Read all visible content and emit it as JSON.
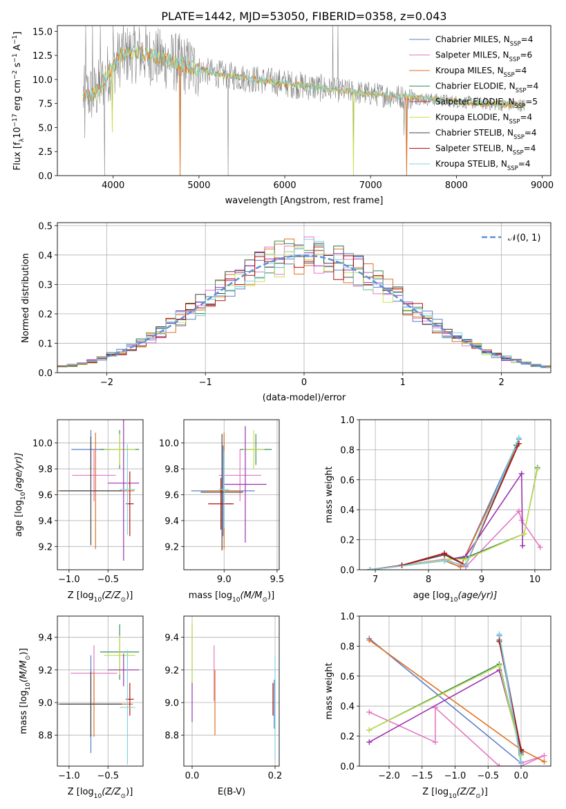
{
  "figure": {
    "title": "PLATE=1442, MJD=53050, FIBERID=0358, z=0.043",
    "legend_entries": [
      {
        "text": "Chabrier MILES, N",
        "sub": "SSP",
        "post": "=4",
        "color": "#5b7fc7"
      },
      {
        "text": "Salpeter MILES, N",
        "sub": "SSP",
        "post": "=6",
        "color": "#e377c2"
      },
      {
        "text": "Kroupa MILES, N",
        "sub": "SSP",
        "post": "=4",
        "color": "#e07020"
      },
      {
        "text": "Chabrier ELODIE, N",
        "sub": "SSP",
        "post": "=4",
        "color": "#3a8a60"
      },
      {
        "text": "Salpeter ELODIE, N",
        "sub": "SSP",
        "post": "=5",
        "color": "#9b30b0"
      },
      {
        "text": "Kroupa ELODIE, N",
        "sub": "SSP",
        "post": "=4",
        "color": "#c8e050"
      },
      {
        "text": "Chabrier STELIB, N",
        "sub": "SSP",
        "post": "=4",
        "color": "#444444"
      },
      {
        "text": "Salpeter STELIB, N",
        "sub": "SSP",
        "post": "=4",
        "color": "#b01010"
      },
      {
        "text": "Kroupa STELIB, N",
        "sub": "SSP",
        "post": "=4",
        "color": "#7fd3e0"
      }
    ],
    "hist_legend": "𝒩(0, 1)",
    "colors": {
      "data": "#808080",
      "model": "#7fd3e0",
      "normal": "#5b8fd9",
      "grid": "#b0b0b0"
    }
  },
  "chart_data": [
    {
      "type": "line",
      "name": "spectrum",
      "xlabel": "wavelength [Angstrom, rest frame]",
      "ylabel_parts": [
        "Flux [f",
        "λ",
        "10",
        "−17",
        " erg cm",
        "−2",
        " s",
        "−1",
        " A",
        "−1",
        "]"
      ],
      "xlim": [
        3350,
        9100
      ],
      "ylim": [
        0,
        15.6
      ],
      "xticks": [
        4000,
        5000,
        6000,
        7000,
        8000,
        9000
      ],
      "yticks": [
        0.0,
        2.5,
        5.0,
        7.5,
        10.0,
        12.5,
        15.0
      ],
      "ytick_labels": [
        "0.0",
        "2.5",
        "5.0",
        "7.5",
        "10.0",
        "12.5",
        "15.0"
      ],
      "continuum": [
        [
          3650,
          8.3
        ],
        [
          3800,
          8.6
        ],
        [
          3950,
          10.8
        ],
        [
          4100,
          12.5
        ],
        [
          4300,
          12.8
        ],
        [
          4500,
          12.3
        ],
        [
          4800,
          11.6
        ],
        [
          5000,
          11.0
        ],
        [
          5200,
          10.6
        ],
        [
          5500,
          10.2
        ],
        [
          6000,
          9.6
        ],
        [
          6500,
          9.0
        ],
        [
          7000,
          8.5
        ],
        [
          7500,
          8.1
        ],
        [
          8000,
          7.7
        ],
        [
          8500,
          7.4
        ],
        [
          8800,
          7.3
        ]
      ],
      "dips": [
        [
          3900,
          0.0
        ],
        [
          3990,
          4.5
        ],
        [
          4780,
          0.0
        ],
        [
          5340,
          0.0
        ],
        [
          6800,
          0.0
        ],
        [
          7390,
          4.2
        ],
        [
          7420,
          0.5
        ],
        [
          3670,
          3.9
        ]
      ],
      "spikes": [
        [
          6560,
          15.6
        ],
        [
          6620,
          15.6
        ],
        [
          3680,
          15.6
        ],
        [
          3760,
          15.6
        ],
        [
          3850,
          15.6
        ],
        [
          4000,
          15.6
        ],
        [
          4100,
          14.8
        ]
      ]
    },
    {
      "type": "area",
      "name": "residual-histogram",
      "xlabel": "(data-model)/error",
      "ylabel": "Normed distribution",
      "xlim": [
        -2.5,
        2.5
      ],
      "ylim": [
        0,
        0.51
      ],
      "xticks": [
        -2,
        -1,
        0,
        1,
        2
      ],
      "xtick_labels": [
        "−2",
        "−1",
        "0",
        "1",
        "2"
      ],
      "yticks": [
        0.0,
        0.1,
        0.2,
        0.3,
        0.4,
        0.5
      ],
      "ytick_labels": [
        "0.0",
        "0.1",
        "0.2",
        "0.3",
        "0.4",
        "0.5"
      ],
      "bin_width": 0.1,
      "bins_start": -2.5
    },
    {
      "type": "scatter",
      "name": "age-vs-Z",
      "xlabel_parts": [
        "Z [log",
        "10",
        "(Z/Z",
        "⊙",
        ")]"
      ],
      "ylabel_parts": [
        "age  [log",
        "10",
        "(age/yr)]"
      ],
      "xlim": [
        -1.15,
        -0.05
      ],
      "ylim": [
        9.02,
        10.18
      ],
      "xticks": [
        -1.0,
        -0.5
      ],
      "xtick_labels": [
        "−1.0",
        "−0.5"
      ],
      "yticks": [
        9.2,
        9.4,
        9.6,
        9.8,
        10.0
      ],
      "ytick_labels": [
        "9.2",
        "9.4",
        "9.6",
        "9.8",
        "10.0"
      ],
      "points": [
        {
          "x": -0.72,
          "xerr": 0.25,
          "y": 9.95,
          "yerr": 0.15,
          "c": 0
        },
        {
          "x": -0.68,
          "xerr": 0.28,
          "y": 9.75,
          "yerr": 0.2,
          "c": 1
        },
        {
          "x": -0.66,
          "xerr": 0.5,
          "y": 9.63,
          "yerr": 0.45,
          "c": 2
        },
        {
          "x": -0.72,
          "xerr": 0.4,
          "y": 9.63,
          "yerr": 0.42,
          "c": 6
        },
        {
          "x": -0.35,
          "xerr": 0.25,
          "y": 9.95,
          "yerr": 0.15,
          "c": 3
        },
        {
          "x": -0.35,
          "xerr": 0.2,
          "y": 9.95,
          "yerr": 0.12,
          "c": 5
        },
        {
          "x": -0.3,
          "xerr": 0.2,
          "y": 9.69,
          "yerr": 0.6,
          "c": 4
        },
        {
          "x": -0.22,
          "xerr": 0.05,
          "y": 9.53,
          "yerr": 0.25,
          "c": 7
        },
        {
          "x": -0.25,
          "xerr": 0.1,
          "y": 9.64,
          "yerr": 0.35,
          "c": 8
        }
      ]
    },
    {
      "type": "scatter",
      "name": "age-vs-mass",
      "xlabel_parts": [
        "mass [log",
        "10",
        "(M/M",
        "⊙",
        ")]"
      ],
      "xlim": [
        8.62,
        9.52
      ],
      "ylim": [
        9.02,
        10.18
      ],
      "xticks": [
        9.0,
        9.5
      ],
      "xtick_labels": [
        "9.0",
        "9.5"
      ],
      "yticks": [
        9.2,
        9.4,
        9.6,
        9.8,
        10.0
      ],
      "ytick_labels": [
        "9.2",
        "9.4",
        "9.6",
        "9.8",
        "10.0"
      ],
      "points": [
        {
          "x": 8.99,
          "xerr": 0.3,
          "y": 9.63,
          "yerr": 0.35,
          "c": 0
        },
        {
          "x": 9.15,
          "xerr": 0.2,
          "y": 9.75,
          "yerr": 0.2,
          "c": 1
        },
        {
          "x": 9.0,
          "xerr": 0.17,
          "y": 9.63,
          "yerr": 0.45,
          "c": 2
        },
        {
          "x": 8.98,
          "xerr": 0.2,
          "y": 9.62,
          "yerr": 0.45,
          "c": 6
        },
        {
          "x": 9.3,
          "xerr": 0.15,
          "y": 9.95,
          "yerr": 0.12,
          "c": 3
        },
        {
          "x": 9.28,
          "xerr": 0.1,
          "y": 9.95,
          "yerr": 0.15,
          "c": 5
        },
        {
          "x": 9.2,
          "xerr": 0.2,
          "y": 9.68,
          "yerr": 0.45,
          "c": 4
        },
        {
          "x": 8.97,
          "xerr": 0.12,
          "y": 9.53,
          "yerr": 0.2,
          "c": 7
        },
        {
          "x": 9.0,
          "xerr": 0.05,
          "y": 9.64,
          "yerr": 0.3,
          "c": 8
        }
      ]
    },
    {
      "type": "line",
      "name": "mass-weight-vs-age",
      "xlabel_parts": [
        "age  [log",
        "10",
        "(age/yr)]"
      ],
      "ylabel": "mass weight",
      "xlim": [
        6.7,
        10.3
      ],
      "ylim": [
        0,
        1.0
      ],
      "xticks": [
        7,
        8,
        9,
        10
      ],
      "xtick_labels": [
        "7",
        "8",
        "9",
        "10"
      ],
      "yticks": [
        0.0,
        0.2,
        0.4,
        0.6,
        0.8,
        1.0
      ],
      "ytick_labels": [
        "0.0",
        "0.2",
        "0.4",
        "0.6",
        "0.8",
        "1.0"
      ],
      "series": [
        {
          "c": 0,
          "x": [
            6.9,
            8.3,
            8.6,
            9.7
          ],
          "y": [
            0.0,
            0.06,
            0.02,
            0.87
          ]
        },
        {
          "c": 1,
          "x": [
            6.9,
            8.3,
            8.7,
            9.7,
            9.75,
            10.1
          ],
          "y": [
            0.0,
            0.07,
            0.02,
            0.39,
            0.33,
            0.15
          ]
        },
        {
          "c": 2,
          "x": [
            6.9,
            8.3,
            8.6,
            9.7
          ],
          "y": [
            0.0,
            0.06,
            0.02,
            0.84
          ]
        },
        {
          "c": 3,
          "x": [
            6.9,
            8.4,
            8.7,
            9.8,
            10.05
          ],
          "y": [
            0.0,
            0.07,
            0.08,
            0.24,
            0.68
          ]
        },
        {
          "c": 4,
          "x": [
            6.9,
            8.4,
            8.7,
            9.75,
            9.77
          ],
          "y": [
            0.0,
            0.07,
            0.09,
            0.64,
            0.16
          ]
        },
        {
          "c": 5,
          "x": [
            6.9,
            8.4,
            8.7,
            9.8,
            10.05
          ],
          "y": [
            0.0,
            0.07,
            0.07,
            0.24,
            0.67
          ]
        },
        {
          "c": 6,
          "x": [
            6.9,
            7.5,
            8.3,
            8.7,
            9.65
          ],
          "y": [
            0.0,
            0.03,
            0.1,
            0.03,
            0.83
          ]
        },
        {
          "c": 7,
          "x": [
            6.9,
            7.5,
            8.3,
            8.7,
            9.7
          ],
          "y": [
            0.0,
            0.03,
            0.11,
            0.03,
            0.84
          ]
        },
        {
          "c": 8,
          "x": [
            6.9,
            8.3,
            8.7,
            9.7
          ],
          "y": [
            0.0,
            0.06,
            0.03,
            0.88
          ]
        }
      ]
    },
    {
      "type": "scatter",
      "name": "mass-vs-Z",
      "xlabel_parts": [
        "Z [log",
        "10",
        "(Z/Z",
        "⊙",
        ")]"
      ],
      "ylabel_parts": [
        "mass [log",
        "10",
        "(M/M",
        "⊙",
        ")]"
      ],
      "xlim": [
        -1.15,
        -0.05
      ],
      "ylim": [
        8.61,
        9.53
      ],
      "xticks": [
        -1.0,
        -0.5
      ],
      "xtick_labels": [
        "−1.0",
        "−0.5"
      ],
      "yticks": [
        8.8,
        9.0,
        9.2,
        9.4
      ],
      "ytick_labels": [
        "8.8",
        "9.0",
        "9.2",
        "9.4"
      ],
      "points": [
        {
          "x": -0.72,
          "xerr": 0.4,
          "y": 8.99,
          "yerr": 0.3,
          "c": 0
        },
        {
          "x": -0.68,
          "xerr": 0.3,
          "y": 9.18,
          "yerr": 0.17,
          "c": 1
        },
        {
          "x": -0.68,
          "xerr": 0.5,
          "y": 8.99,
          "yerr": 0.2,
          "c": 2
        },
        {
          "x": -0.72,
          "xerr": 0.4,
          "y": 8.99,
          "yerr": 0.2,
          "c": 6
        },
        {
          "x": -0.35,
          "xerr": 0.25,
          "y": 9.31,
          "yerr": 0.17,
          "c": 3
        },
        {
          "x": -0.35,
          "xerr": 0.2,
          "y": 9.29,
          "yerr": 0.12,
          "c": 5
        },
        {
          "x": -0.3,
          "xerr": 0.2,
          "y": 9.2,
          "yerr": 0.1,
          "c": 4
        },
        {
          "x": -0.22,
          "xerr": 0.05,
          "y": 9.02,
          "yerr": 0.1,
          "c": 7
        },
        {
          "x": -0.25,
          "xerr": 0.1,
          "y": 8.97,
          "yerr": 0.35,
          "c": 8
        }
      ]
    },
    {
      "type": "scatter",
      "name": "mass-vs-ebv",
      "xlabel": "E(B-V)",
      "xlim": [
        -0.02,
        0.21
      ],
      "ylim": [
        8.61,
        9.53
      ],
      "xticks": [
        0.0,
        0.2
      ],
      "xtick_labels": [
        "0.0",
        "0.2"
      ],
      "yticks": [
        8.8,
        9.0,
        9.2,
        9.4
      ],
      "ytick_labels": [
        "8.8",
        "9.0",
        "9.2",
        "9.4"
      ],
      "points": [
        {
          "x": 0.0,
          "y": 9.3,
          "yerr": 0.18,
          "c": 3
        },
        {
          "x": 0.0,
          "y": 9.3,
          "yerr": 0.2,
          "c": 5
        },
        {
          "x": 0.0,
          "y": 9.0,
          "yerr": 0.12,
          "c": 4
        },
        {
          "x": 0.053,
          "y": 9.18,
          "yerr": 0.17,
          "c": 1
        },
        {
          "x": 0.055,
          "y": 9.0,
          "yerr": 0.2,
          "c": 2
        },
        {
          "x": 0.195,
          "y": 9.02,
          "yerr": 0.1,
          "c": 7
        },
        {
          "x": 0.198,
          "y": 8.99,
          "yerr": 0.15,
          "c": 0
        },
        {
          "x": 0.2,
          "y": 8.97,
          "yerr": 0.32,
          "c": 8
        }
      ]
    },
    {
      "type": "line",
      "name": "mass-weight-vs-Z",
      "xlabel_parts": [
        "Z [log",
        "10",
        "(Z/Z",
        "⊙",
        ")]"
      ],
      "ylabel": "mass weight",
      "xlim": [
        -2.45,
        0.45
      ],
      "ylim": [
        0,
        1.0
      ],
      "xticks": [
        -2.0,
        -1.5,
        -1.0,
        -0.5,
        0.0
      ],
      "xtick_labels": [
        "−2.0",
        "−1.5",
        "−1.0",
        "−0.5",
        "0.0"
      ],
      "yticks": [
        0.0,
        0.2,
        0.4,
        0.6,
        0.8,
        1.0
      ],
      "ytick_labels": [
        "0.0",
        "0.2",
        "0.4",
        "0.6",
        "0.8",
        "1.0"
      ],
      "series": [
        {
          "c": 0,
          "x": [
            -2.3,
            0.0,
            -0.33,
            0.0
          ],
          "y": [
            0.85,
            0.02,
            0.87,
            0.1
          ]
        },
        {
          "c": 1,
          "x": [
            -2.3,
            -1.3,
            -1.3,
            -0.33,
            0.0,
            0.35,
            0.0
          ],
          "y": [
            0.36,
            0.16,
            0.39,
            0.0,
            0.0,
            0.07,
            0.02
          ]
        },
        {
          "c": 2,
          "x": [
            -2.3,
            0.0,
            0.35
          ],
          "y": [
            0.84,
            0.11,
            0.03
          ]
        },
        {
          "c": 3,
          "x": [
            -2.3,
            -0.33,
            0.0
          ],
          "y": [
            0.24,
            0.68,
            0.08
          ]
        },
        {
          "c": 4,
          "x": [
            -2.3,
            -0.33,
            0.0
          ],
          "y": [
            0.16,
            0.64,
            0.09
          ]
        },
        {
          "c": 5,
          "x": [
            -2.3,
            -0.33,
            0.0
          ],
          "y": [
            0.24,
            0.67,
            0.07
          ]
        },
        {
          "c": 6,
          "x": [
            -0.33,
            0.0
          ],
          "y": [
            0.83,
            0.1
          ]
        },
        {
          "c": 7,
          "x": [
            -0.33,
            0.0
          ],
          "y": [
            0.84,
            0.11
          ]
        },
        {
          "c": 8,
          "x": [
            -0.33,
            0.0,
            0.0
          ],
          "y": [
            0.88,
            0.03,
            0.0
          ]
        }
      ]
    }
  ]
}
